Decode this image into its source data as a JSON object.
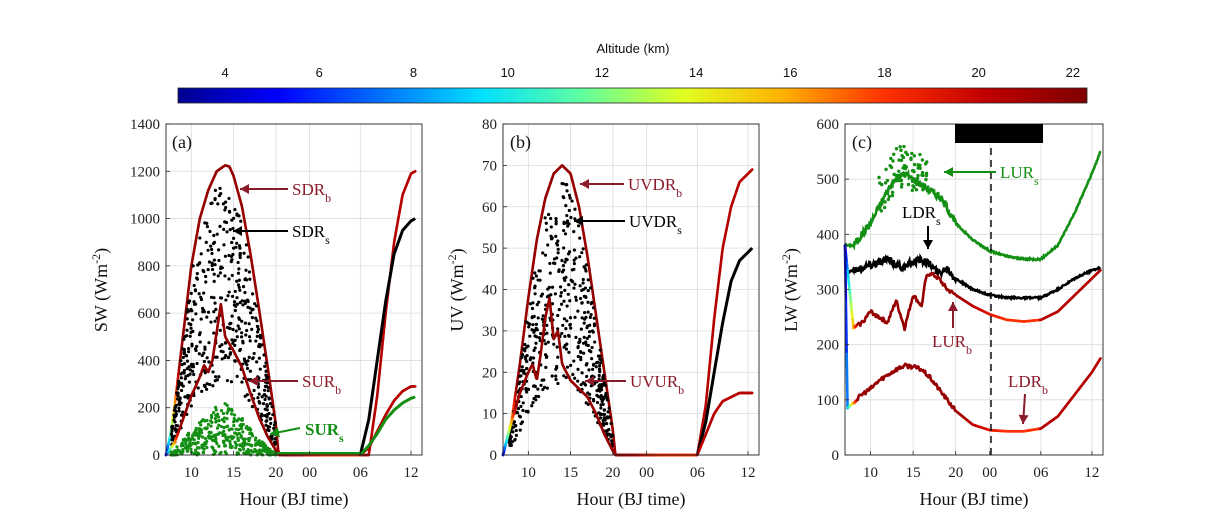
{
  "colorbar": {
    "title": "Altitude (km)",
    "ticks": [
      "4",
      "6",
      "8",
      "10",
      "12",
      "14",
      "16",
      "18",
      "20",
      "22"
    ],
    "range": [
      3,
      22.3
    ],
    "stops": [
      "#00008f",
      "#0000ff",
      "#0070ff",
      "#00e0ff",
      "#60ffa0",
      "#e0ff20",
      "#ffb000",
      "#ff3000",
      "#c00000",
      "#7f0000"
    ]
  },
  "colors": {
    "dark_red": "#8b0a0a",
    "label_red": "#8b1a2a",
    "black": "#000000",
    "green": "#138f13"
  },
  "chart_data": [
    {
      "panel": "(a)",
      "type": "line",
      "ylabel": "SW (Wm-2)",
      "xlabel": "Hour (BJ time)",
      "ylim": [
        0,
        1400
      ],
      "yticks": [
        "0",
        "200",
        "400",
        "600",
        "800",
        "1000",
        "1200",
        "1400"
      ],
      "xticks": [
        "10",
        "15",
        "20",
        "00",
        "06",
        "12"
      ],
      "series": [
        {
          "name": "SDRb",
          "x": [
            7,
            7.5,
            8,
            9,
            10,
            11,
            12,
            13,
            14,
            14.5,
            15,
            16,
            17,
            18,
            19,
            20,
            20.3,
            21,
            24,
            27,
            30,
            31,
            32,
            33,
            34,
            35,
            36,
            36.5
          ],
          "y": [
            0,
            80,
            200,
            500,
            800,
            1000,
            1120,
            1200,
            1225,
            1220,
            1180,
            1050,
            850,
            620,
            380,
            130,
            10,
            0,
            0,
            0,
            0,
            0,
            250,
            600,
            900,
            1100,
            1190,
            1200
          ]
        },
        {
          "name": "SDRs",
          "x": [
            30,
            31,
            32,
            33,
            34,
            35,
            36,
            36.5
          ],
          "y": [
            0,
            150,
            400,
            650,
            850,
            950,
            990,
            1000
          ]
        },
        {
          "name": "SURb",
          "x": [
            7,
            8,
            9,
            10,
            11,
            11.5,
            12,
            12.5,
            13,
            13.5,
            14,
            15,
            16,
            17,
            18,
            19,
            20,
            20.3,
            21,
            24,
            30,
            31,
            32,
            33,
            34,
            35,
            36,
            36.5
          ],
          "y": [
            0,
            50,
            150,
            250,
            330,
            380,
            350,
            400,
            520,
            640,
            500,
            440,
            370,
            260,
            160,
            80,
            20,
            0,
            0,
            0,
            0,
            30,
            100,
            170,
            230,
            270,
            290,
            290
          ]
        },
        {
          "name": "SURs",
          "x": [
            30,
            31,
            32,
            33,
            34,
            35,
            36,
            36.5
          ],
          "y": [
            0,
            40,
            90,
            150,
            190,
            220,
            240,
            245
          ]
        }
      ],
      "annotations": [
        {
          "base": "SDR",
          "sub": "b",
          "color": "label_red"
        },
        {
          "base": "SDR",
          "sub": "s",
          "color": "black"
        },
        {
          "base": "SUR",
          "sub": "b",
          "color": "label_red"
        },
        {
          "base": "SUR",
          "sub": "s",
          "color": "green"
        }
      ]
    },
    {
      "panel": "(b)",
      "type": "line",
      "ylabel": "UV  (Wm-2)",
      "xlabel": "Hour (BJ time)",
      "ylim": [
        0,
        80
      ],
      "yticks": [
        "0",
        "10",
        "20",
        "30",
        "40",
        "50",
        "60",
        "70",
        "80"
      ],
      "xticks": [
        "10",
        "15",
        "20",
        "00",
        "06",
        "12"
      ],
      "series": [
        {
          "name": "UVDRb",
          "x": [
            7,
            8,
            9,
            10,
            11,
            12,
            13,
            14,
            15,
            16,
            17,
            18,
            19,
            20,
            20.3,
            21,
            24,
            30,
            31,
            32,
            33,
            34,
            35,
            36,
            36.5
          ],
          "y": [
            0,
            8,
            22,
            38,
            52,
            62,
            68,
            70,
            68,
            60,
            48,
            34,
            20,
            6,
            0,
            0,
            0,
            0,
            12,
            33,
            50,
            60,
            66,
            68,
            69
          ]
        },
        {
          "name": "UVDRs",
          "x": [
            30,
            31,
            32,
            33,
            34,
            35,
            36,
            36.5
          ],
          "y": [
            0,
            8,
            20,
            32,
            42,
            47,
            49,
            50
          ]
        },
        {
          "name": "UVURb",
          "x": [
            7,
            8,
            9,
            10,
            10.5,
            11,
            11.5,
            12,
            12.5,
            13,
            13.5,
            14,
            15,
            16,
            17,
            18,
            19,
            20,
            20.3,
            21,
            24,
            30,
            31,
            32,
            33,
            34,
            35,
            36,
            36.5
          ],
          "y": [
            0,
            8,
            15,
            20,
            22,
            18,
            25,
            33,
            38,
            28,
            30,
            22,
            18,
            16,
            14,
            10,
            5,
            1,
            0,
            0,
            0,
            0,
            5,
            10,
            13,
            14,
            15,
            15,
            15
          ]
        }
      ],
      "annotations": [
        {
          "base": "UVDR",
          "sub": "b",
          "color": "label_red"
        },
        {
          "base": "UVDR",
          "sub": "s",
          "color": "black"
        },
        {
          "base": "UVUR",
          "sub": "b",
          "color": "label_red"
        }
      ]
    },
    {
      "panel": "(c)",
      "type": "line",
      "ylabel": "LW  (Wm-2)",
      "xlabel": "Hour (BJ time)",
      "ylim": [
        0,
        600
      ],
      "yticks": [
        "0",
        "100",
        "200",
        "300",
        "400",
        "500",
        "600"
      ],
      "xticks": [
        "10",
        "15",
        "20",
        "00",
        "06",
        "12"
      ],
      "series": [
        {
          "name": "LURs",
          "x": [
            7,
            8,
            9,
            10,
            11,
            12,
            13,
            14,
            15,
            16,
            17,
            18,
            19,
            20,
            22,
            24,
            26,
            28,
            30,
            32,
            34,
            36,
            37
          ],
          "y": [
            380,
            380,
            400,
            420,
            450,
            480,
            500,
            510,
            500,
            490,
            480,
            470,
            450,
            420,
            390,
            370,
            360,
            355,
            355,
            380,
            440,
            510,
            550
          ]
        },
        {
          "name": "LDRs",
          "x": [
            7,
            8,
            9,
            10,
            11,
            12,
            13,
            14,
            15,
            16,
            17,
            18,
            19,
            20,
            22,
            24,
            26,
            28,
            30,
            32,
            34,
            36,
            37
          ],
          "y": [
            330,
            335,
            340,
            345,
            350,
            355,
            345,
            340,
            350,
            355,
            345,
            330,
            340,
            320,
            300,
            290,
            285,
            285,
            285,
            300,
            320,
            335,
            340
          ]
        },
        {
          "name": "LURb",
          "x": [
            7,
            8,
            9,
            10,
            11,
            12,
            13,
            14,
            15,
            16,
            16.5,
            17,
            18,
            19,
            20,
            22,
            24,
            26,
            28,
            30,
            32,
            34,
            36,
            37
          ],
          "y": [
            380,
            230,
            240,
            260,
            250,
            240,
            280,
            230,
            290,
            270,
            320,
            330,
            320,
            300,
            290,
            270,
            255,
            245,
            242,
            245,
            260,
            290,
            320,
            335
          ]
        },
        {
          "name": "LDRb",
          "x": [
            7,
            7.3,
            8,
            9,
            10,
            11,
            12,
            13,
            14,
            15,
            16,
            17,
            18,
            19,
            20,
            22,
            24,
            26,
            28,
            30,
            32,
            34,
            36,
            37
          ],
          "y": [
            380,
            85,
            95,
            110,
            120,
            135,
            145,
            155,
            162,
            160,
            155,
            140,
            120,
            100,
            80,
            55,
            45,
            43,
            43,
            48,
            70,
            110,
            150,
            175
          ]
        }
      ],
      "annotations": [
        {
          "base": "LUR",
          "sub": "s",
          "color": "green"
        },
        {
          "base": "LDR",
          "sub": "s",
          "color": "black"
        },
        {
          "base": "LUR",
          "sub": "b",
          "color": "label_red"
        },
        {
          "base": "LDR",
          "sub": "b",
          "color": "label_red"
        }
      ]
    }
  ],
  "text": {
    "sw_ylabel_main": "SW (Wm",
    "sw_ylabel_sup": "-2",
    "sw_ylabel_end": ")",
    "uv_ylabel_main": "UV  (Wm",
    "uv_ylabel_sup": "-2",
    "uv_ylabel_end": ")",
    "lw_ylabel_main": "LW  (Wm",
    "lw_ylabel_sup": "-2",
    "lw_ylabel_end": ")",
    "xlabel": "Hour (BJ time)"
  }
}
